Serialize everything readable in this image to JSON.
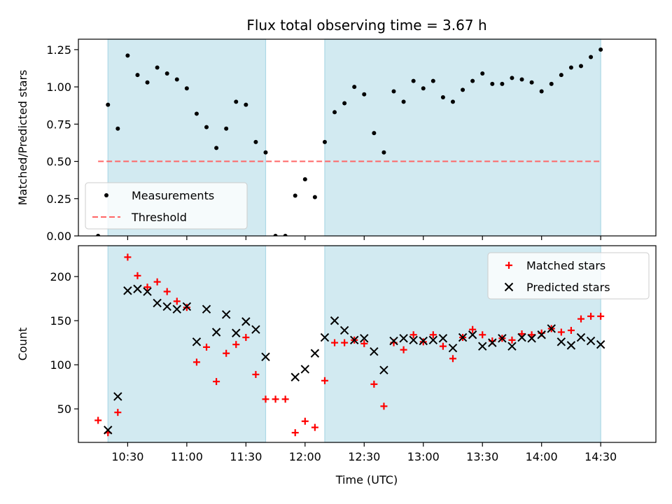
{
  "chart_data": [
    {
      "type": "scatter",
      "title": "Flux total observing time = 3.67 h",
      "xlabel": "",
      "ylabel": "Matched/Predicted stars",
      "ylim": [
        0.0,
        1.32
      ],
      "yticks": [
        "0.00",
        "0.25",
        "0.50",
        "0.75",
        "1.00",
        "1.25"
      ],
      "ytick_values": [
        0.0,
        0.25,
        0.5,
        0.75,
        1.0,
        1.25
      ],
      "xlim": [
        "10:05",
        "14:58"
      ],
      "xticks": [
        "10:30",
        "11:00",
        "11:30",
        "12:00",
        "12:30",
        "13:00",
        "13:30",
        "14:00",
        "14:30"
      ],
      "x_tick_labels_shown": false,
      "shaded_intervals": [
        [
          "10:20",
          "11:40"
        ],
        [
          "12:10",
          "14:30"
        ]
      ],
      "shade_color": "#add8e6",
      "legend": {
        "placement": "lower-left",
        "entries": [
          "Measurements",
          "Threshold"
        ]
      },
      "series": [
        {
          "name": "Measurements",
          "marker": "dot",
          "color": "#000000",
          "x": [
            "10:15",
            "10:20",
            "10:25",
            "10:30",
            "10:35",
            "10:40",
            "10:45",
            "10:50",
            "10:55",
            "11:00",
            "11:05",
            "11:10",
            "11:15",
            "11:20",
            "11:25",
            "11:30",
            "11:35",
            "11:40",
            "11:45",
            "11:50",
            "11:55",
            "12:00",
            "12:05",
            "12:10",
            "12:15",
            "12:20",
            "12:25",
            "12:30",
            "12:35",
            "12:40",
            "12:45",
            "12:50",
            "12:55",
            "13:00",
            "13:05",
            "13:10",
            "13:15",
            "13:20",
            "13:25",
            "13:30",
            "13:35",
            "13:40",
            "13:45",
            "13:50",
            "13:55",
            "14:00",
            "14:05",
            "14:10",
            "14:15",
            "14:20",
            "14:25",
            "14:30"
          ],
          "y": [
            0.0,
            0.88,
            0.72,
            1.21,
            1.08,
            1.03,
            1.13,
            1.09,
            1.05,
            0.99,
            0.82,
            0.73,
            0.59,
            0.72,
            0.9,
            0.88,
            0.63,
            0.56,
            0.0,
            0.0,
            0.27,
            0.38,
            0.26,
            0.63,
            0.83,
            0.89,
            1.0,
            0.95,
            0.69,
            0.56,
            0.97,
            0.9,
            1.04,
            0.99,
            1.04,
            0.93,
            0.9,
            0.98,
            1.04,
            1.09,
            1.02,
            1.02,
            1.06,
            1.05,
            1.03,
            0.97,
            1.02,
            1.08,
            1.13,
            1.14,
            1.2,
            1.25
          ]
        },
        {
          "name": "Threshold",
          "marker": "dashed-line",
          "color": "#ff6666",
          "x": [
            "10:15",
            "14:30"
          ],
          "y": [
            0.5,
            0.5
          ]
        }
      ]
    },
    {
      "type": "scatter",
      "title": "",
      "xlabel": "Time (UTC)",
      "ylabel": "Count",
      "ylim": [
        12,
        235
      ],
      "yticks": [
        "50",
        "100",
        "150",
        "200"
      ],
      "ytick_values": [
        50,
        100,
        150,
        200
      ],
      "xlim": [
        "10:05",
        "14:58"
      ],
      "xticks": [
        "10:30",
        "11:00",
        "11:30",
        "12:00",
        "12:30",
        "13:00",
        "13:30",
        "14:00",
        "14:30"
      ],
      "x_tick_labels_shown": true,
      "shaded_intervals": [
        [
          "10:20",
          "11:40"
        ],
        [
          "12:10",
          "14:30"
        ]
      ],
      "shade_color": "#add8e6",
      "legend": {
        "placement": "upper-right",
        "entries": [
          "Matched stars",
          "Predicted stars"
        ]
      },
      "series": [
        {
          "name": "Matched stars",
          "marker": "plus",
          "color": "#ff0000",
          "x": [
            "10:15",
            "10:20",
            "10:25",
            "10:30",
            "10:35",
            "10:40",
            "10:45",
            "10:50",
            "10:55",
            "11:00",
            "11:05",
            "11:10",
            "11:15",
            "11:20",
            "11:25",
            "11:30",
            "11:35",
            "11:40",
            "11:45",
            "11:50",
            "11:55",
            "12:00",
            "12:05",
            "12:10",
            "12:15",
            "12:20",
            "12:25",
            "12:30",
            "12:35",
            "12:40",
            "12:45",
            "12:50",
            "12:55",
            "13:00",
            "13:05",
            "13:10",
            "13:15",
            "13:20",
            "13:25",
            "13:30",
            "13:35",
            "13:40",
            "13:45",
            "13:50",
            "13:55",
            "14:00",
            "14:05",
            "14:10",
            "14:15",
            "14:20",
            "14:25",
            "14:30"
          ],
          "y": [
            37,
            23,
            46,
            222,
            201,
            188,
            194,
            183,
            172,
            165,
            103,
            120,
            81,
            113,
            123,
            131,
            89,
            61,
            61,
            61,
            23,
            36,
            29,
            82,
            125,
            125,
            128,
            124,
            78,
            53,
            125,
            117,
            134,
            126,
            134,
            121,
            107,
            131,
            140,
            134,
            127,
            130,
            128,
            135,
            134,
            136,
            141,
            137,
            139,
            152,
            155,
            155
          ]
        },
        {
          "name": "Predicted stars",
          "marker": "x",
          "color": "#000000",
          "x": [
            "10:20",
            "10:25",
            "10:30",
            "10:35",
            "10:40",
            "10:45",
            "10:50",
            "10:55",
            "11:00",
            "11:05",
            "11:10",
            "11:15",
            "11:20",
            "11:25",
            "11:30",
            "11:35",
            "11:40",
            "11:55",
            "12:00",
            "12:05",
            "12:10",
            "12:15",
            "12:20",
            "12:25",
            "12:30",
            "12:35",
            "12:40",
            "12:45",
            "12:50",
            "12:55",
            "13:00",
            "13:05",
            "13:10",
            "13:15",
            "13:20",
            "13:25",
            "13:30",
            "13:35",
            "13:40",
            "13:45",
            "13:50",
            "13:55",
            "14:00",
            "14:05",
            "14:10",
            "14:15",
            "14:20",
            "14:25",
            "14:30"
          ],
          "y": [
            26,
            64,
            184,
            186,
            183,
            170,
            166,
            163,
            166,
            126,
            163,
            137,
            157,
            136,
            149,
            140,
            109,
            86,
            95,
            113,
            131,
            150,
            139,
            128,
            130,
            115,
            94,
            127,
            130,
            128,
            127,
            128,
            130,
            119,
            131,
            134,
            121,
            125,
            130,
            121,
            131,
            130,
            134,
            141,
            126,
            122,
            131,
            127,
            123
          ]
        }
      ]
    }
  ]
}
